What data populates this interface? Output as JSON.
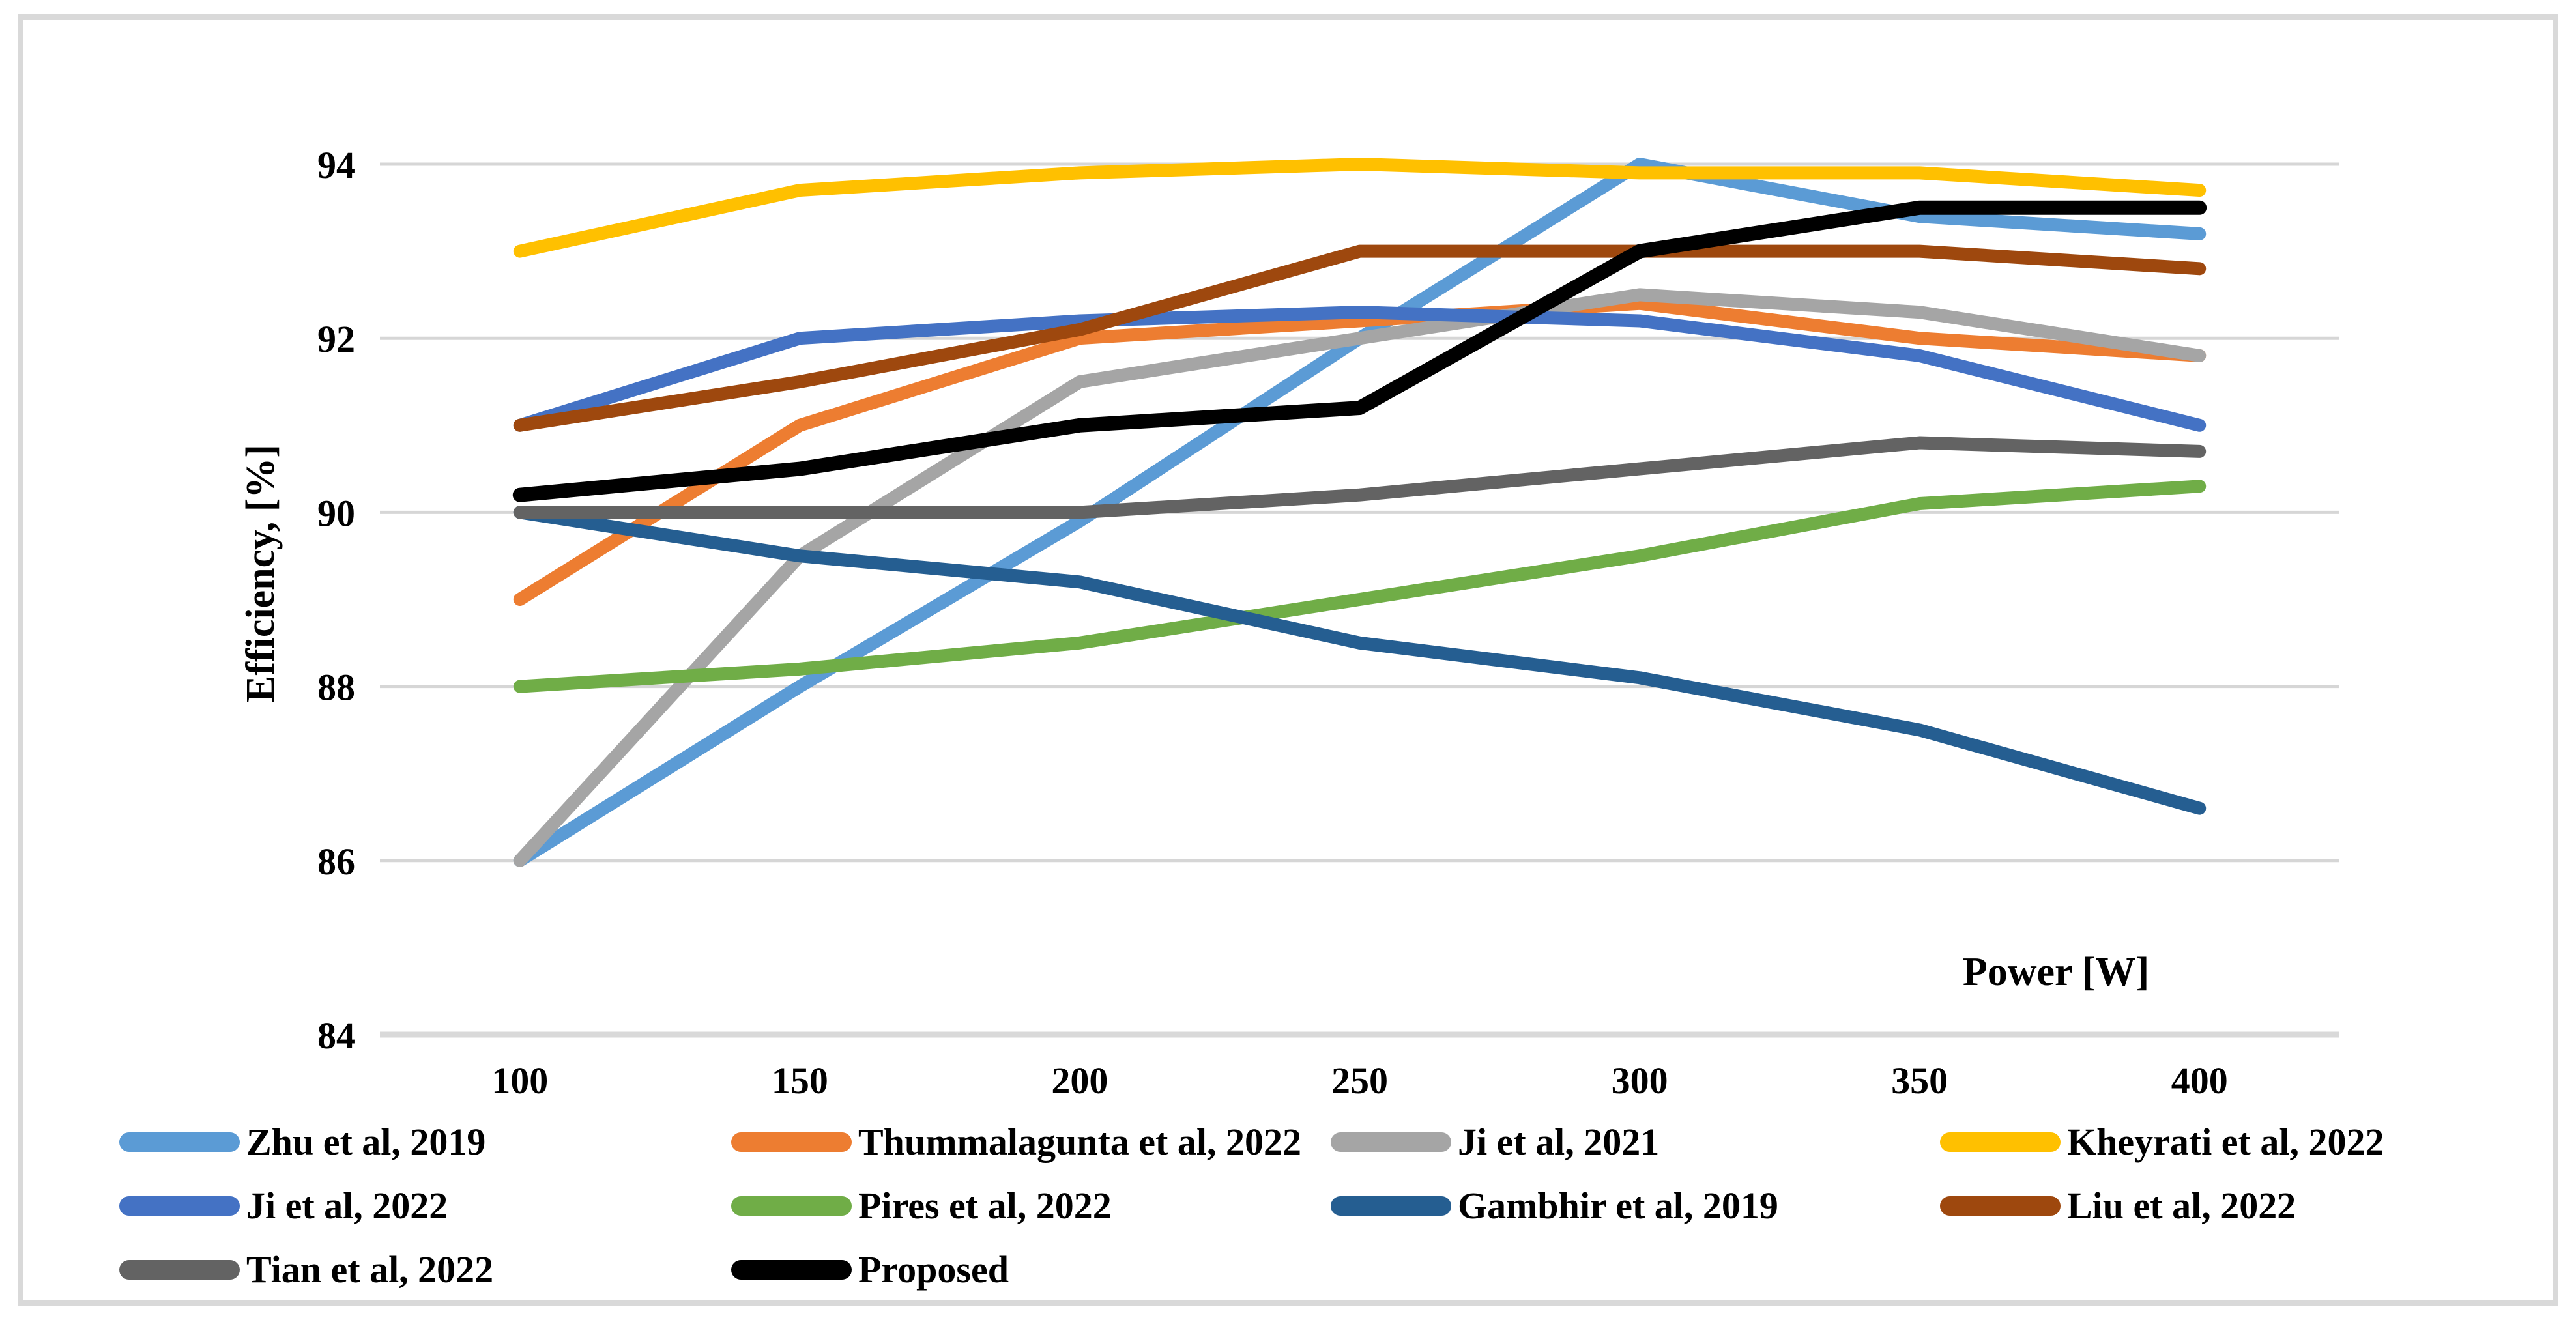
{
  "figure": {
    "background": "#FFFFFF",
    "frame_color": "#D9D9D9",
    "gridline_color": "#D6D6D6",
    "axis_line_color": "#D9D9D9",
    "text_color": "#000000"
  },
  "chart_data": {
    "type": "line",
    "title": "",
    "xlabel": "Power [W]",
    "ylabel": "Efficiency, [%]",
    "x": [
      100,
      150,
      200,
      250,
      300,
      350,
      400
    ],
    "x_tick_labels": [
      "100",
      "150",
      "200",
      "250",
      "300",
      "350",
      "400"
    ],
    "ylim": [
      84,
      94
    ],
    "yticks": [
      84,
      86,
      88,
      90,
      92,
      94
    ],
    "y_tick_labels": [
      "84",
      "86",
      "88",
      "90",
      "92",
      "94"
    ],
    "grid": true,
    "legend_position": "bottom",
    "series": [
      {
        "name": "Zhu et al, 2019",
        "color": "#5B9BD5",
        "values": [
          86.0,
          88.0,
          89.9,
          92.0,
          94.0,
          93.4,
          93.2
        ]
      },
      {
        "name": "Thummalagunta et al, 2022",
        "color": "#ED7D31",
        "values": [
          89.0,
          91.0,
          92.0,
          92.2,
          92.4,
          92.0,
          91.8
        ]
      },
      {
        "name": "Ji et al, 2021",
        "color": "#A5A5A5",
        "values": [
          86.0,
          89.5,
          91.5,
          92.0,
          92.5,
          92.3,
          91.8
        ]
      },
      {
        "name": "Kheyrati et al, 2022",
        "color": "#FFC000",
        "values": [
          93.0,
          93.7,
          93.9,
          94.0,
          93.9,
          93.9,
          93.7
        ]
      },
      {
        "name": "Ji et al, 2022",
        "color": "#4472C4",
        "values": [
          91.0,
          92.0,
          92.2,
          92.3,
          92.2,
          91.8,
          91.0
        ]
      },
      {
        "name": "Pires et al, 2022",
        "color": "#70AD47",
        "values": [
          88.0,
          88.2,
          88.5,
          89.0,
          89.5,
          90.1,
          90.3
        ]
      },
      {
        "name": "Gambhir et al, 2019",
        "color": "#255E91",
        "values": [
          90.0,
          89.5,
          89.2,
          88.5,
          88.1,
          87.5,
          86.6
        ]
      },
      {
        "name": "Liu et al, 2022",
        "color": "#9E480E",
        "values": [
          91.0,
          91.5,
          92.1,
          93.0,
          93.0,
          93.0,
          92.8
        ]
      },
      {
        "name": "Tian et al, 2022",
        "color": "#636363",
        "values": [
          90.0,
          90.0,
          90.0,
          90.2,
          90.5,
          90.8,
          90.7
        ]
      },
      {
        "name": "Proposed",
        "color": "#000000",
        "values": [
          90.2,
          90.5,
          91.0,
          91.2,
          93.0,
          93.5,
          93.5
        ]
      }
    ]
  }
}
